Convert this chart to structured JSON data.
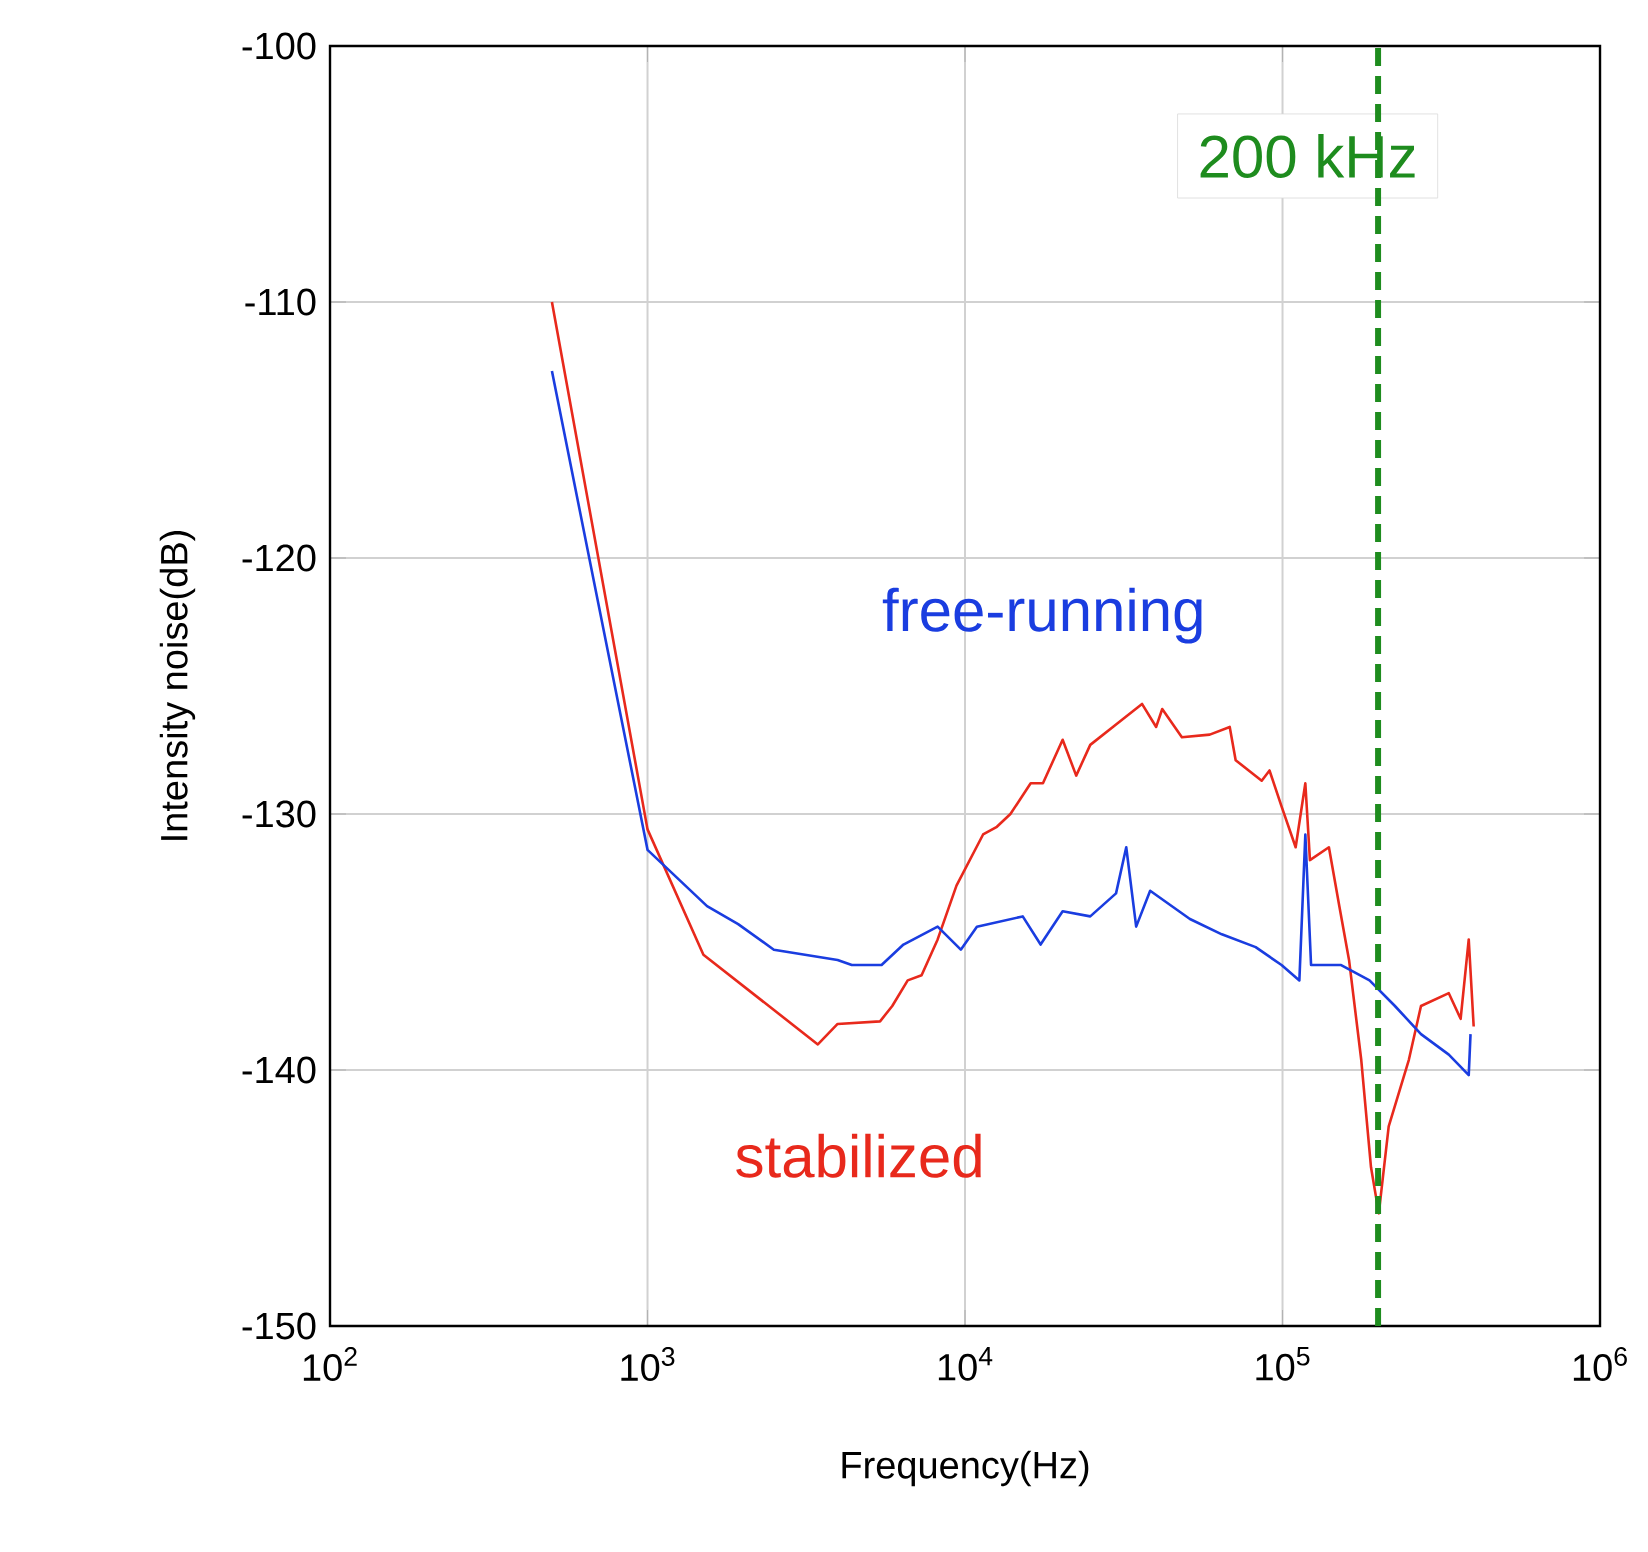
{
  "chart_data": {
    "type": "line",
    "xlabel": "Frequency(Hz)",
    "ylabel": "Intensity noise(dB)",
    "log": "x",
    "grid": true,
    "legend": false,
    "marker": "none",
    "line_style": "solid",
    "xlim": [
      100,
      1000000
    ],
    "ylim": [
      -150,
      -100
    ],
    "xticks": [
      {
        "value": 100,
        "label": "10$^{2}$"
      },
      {
        "value": 1000,
        "label": "10$^{3}$"
      },
      {
        "value": 10000,
        "label": "10$^{4}$"
      },
      {
        "value": 100000,
        "label": "10$^{5}$"
      },
      {
        "value": 1000000,
        "label": "10$^{6}$"
      }
    ],
    "yticks": [
      -150,
      -140,
      -130,
      -120,
      -110,
      -100
    ],
    "ref_lines": [
      {
        "axis": "x",
        "value": 200000,
        "label": "200 kHz",
        "color": "#1e8c1e",
        "line_style": "dashed"
      }
    ],
    "series": [
      {
        "name": "stabilized",
        "color": "#e8291c",
        "x": [
          500,
          1000,
          1500,
          3440,
          3970,
          5400,
          5900,
          6600,
          7300,
          8200,
          9400,
          11400,
          12600,
          13900,
          16100,
          17600,
          20300,
          22400,
          24800,
          29900,
          36100,
          40000,
          41800,
          48200,
          59000,
          68200,
          71200,
          86000,
          91000,
          99300,
          110000,
          118000,
          122000,
          140000,
          151000,
          162000,
          177000,
          190000,
          201000,
          216000,
          250000,
          273000,
          334000,
          364000,
          386000,
          400000
        ],
        "values": [
          -110.0,
          -130.6,
          -135.5,
          -139.0,
          -138.2,
          -138.1,
          -137.5,
          -136.5,
          -136.3,
          -134.9,
          -132.8,
          -130.8,
          -130.5,
          -130.0,
          -128.8,
          -128.8,
          -127.1,
          -128.5,
          -127.3,
          -126.5,
          -125.7,
          -126.6,
          -125.9,
          -127.0,
          -126.9,
          -126.6,
          -127.9,
          -128.7,
          -128.3,
          -129.7,
          -131.3,
          -128.8,
          -131.8,
          -131.3,
          -133.6,
          -135.7,
          -139.6,
          -143.8,
          -145.6,
          -142.2,
          -139.6,
          -137.5,
          -137.0,
          -138.0,
          -134.9,
          -138.3
        ]
      },
      {
        "name": "free-running",
        "color": "#1a3de0",
        "x": [
          500,
          1000,
          1540,
          1930,
          2500,
          3970,
          4400,
          5460,
          6400,
          8200,
          9700,
          10900,
          15200,
          17300,
          20300,
          24800,
          29900,
          32200,
          34600,
          38300,
          51100,
          64400,
          82300,
          99300,
          113000,
          118000,
          123000,
          153000,
          188000,
          226000,
          273000,
          334000,
          386000,
          391000
        ],
        "values": [
          -112.7,
          -131.4,
          -133.6,
          -134.3,
          -135.3,
          -135.7,
          -135.9,
          -135.9,
          -135.1,
          -134.4,
          -135.3,
          -134.4,
          -134.0,
          -135.1,
          -133.8,
          -134.0,
          -133.1,
          -131.3,
          -134.4,
          -133.0,
          -134.1,
          -134.7,
          -135.2,
          -135.9,
          -136.5,
          -130.8,
          -135.9,
          -135.9,
          -136.5,
          -137.5,
          -138.6,
          -139.4,
          -140.2,
          -138.6
        ]
      }
    ]
  }
}
